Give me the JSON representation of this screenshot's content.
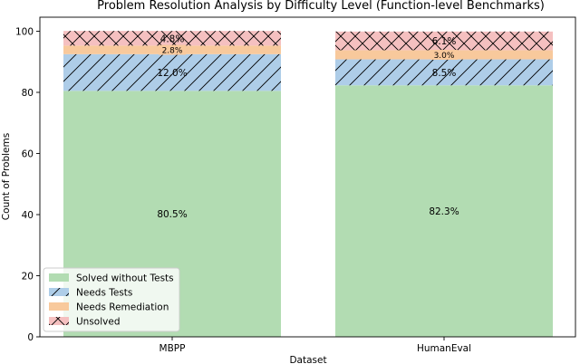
{
  "chart_data": {
    "type": "bar",
    "stacked": true,
    "title": "Problem Resolution Analysis by Difficulty Level (Function-level Benchmarks)",
    "xlabel": "Dataset",
    "ylabel": "Count of Problems",
    "ylim": [
      0,
      100
    ],
    "yticks": [
      0,
      20,
      40,
      60,
      80,
      100
    ],
    "categories": [
      "MBPP",
      "HumanEval"
    ],
    "series": [
      {
        "name": "Solved without Tests",
        "values": [
          80.5,
          82.3
        ],
        "labels": [
          "80.5%",
          "82.3%"
        ],
        "color": "#b2dcb2",
        "hatch": "none"
      },
      {
        "name": "Needs Tests",
        "values": [
          12.0,
          8.5
        ],
        "labels": [
          "12.0%",
          "8.5%"
        ],
        "color": "#aecde8",
        "hatch": "forward"
      },
      {
        "name": "Needs Remediation",
        "values": [
          2.8,
          3.0
        ],
        "labels": [
          "2.8%",
          "3.0%"
        ],
        "color": "#f8c99c",
        "hatch": "none"
      },
      {
        "name": "Unsolved",
        "values": [
          4.8,
          6.1
        ],
        "labels": [
          "4.8%",
          "6.1%"
        ],
        "color": "#f5c0c0",
        "hatch": "cross"
      }
    ],
    "legend_position": "lower-left",
    "grid": false
  }
}
